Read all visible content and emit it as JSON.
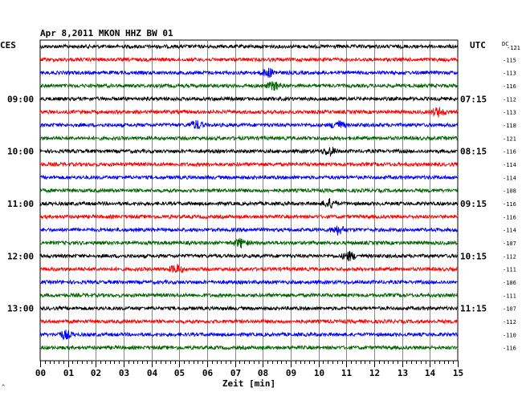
{
  "chart_data": {
    "type": "line",
    "title": "Apr 8,2011   MKON HHZ BW 01",
    "left_unit": "CES",
    "right_unit": "UTC",
    "dc_label": "DC",
    "xlabel": "Zeit [min]",
    "xlim": [
      0,
      15
    ],
    "x_ticks": [
      "00",
      "01",
      "02",
      "03",
      "04",
      "05",
      "06",
      "07",
      "08",
      "09",
      "10",
      "11",
      "12",
      "13",
      "14",
      "15"
    ],
    "grid": true,
    "trace_colors": [
      "#000000",
      "#ff0000",
      "#0000ff",
      "#006400"
    ],
    "left_hour_labels": [
      "09:00",
      "10:00",
      "11:00",
      "12:00",
      "13:00"
    ],
    "right_hour_labels": [
      "07:15",
      "08:15",
      "09:15",
      "10:15",
      "11:15"
    ],
    "dc_offsets": [
      -121,
      -115,
      -113,
      -116,
      -112,
      -113,
      -118,
      -121,
      -116,
      -114,
      -114,
      -108,
      -116,
      -116,
      -114,
      -107,
      -112,
      -111,
      -106,
      -111,
      -107,
      -112,
      -110,
      -116
    ],
    "bursts": [
      {
        "trace": 6,
        "minute": 10.7
      },
      {
        "trace": 6,
        "minute": 5.6
      },
      {
        "trace": 8,
        "minute": 10.4
      },
      {
        "trace": 12,
        "minute": 10.4
      },
      {
        "trace": 14,
        "minute": 10.7
      },
      {
        "trace": 15,
        "minute": 7.2
      },
      {
        "trace": 16,
        "minute": 11.1
      },
      {
        "trace": 17,
        "minute": 4.9
      },
      {
        "trace": 22,
        "minute": 0.9
      },
      {
        "trace": 5,
        "minute": 14.3
      },
      {
        "trace": 3,
        "minute": 8.4
      },
      {
        "trace": 2,
        "minute": 8.2
      }
    ]
  }
}
